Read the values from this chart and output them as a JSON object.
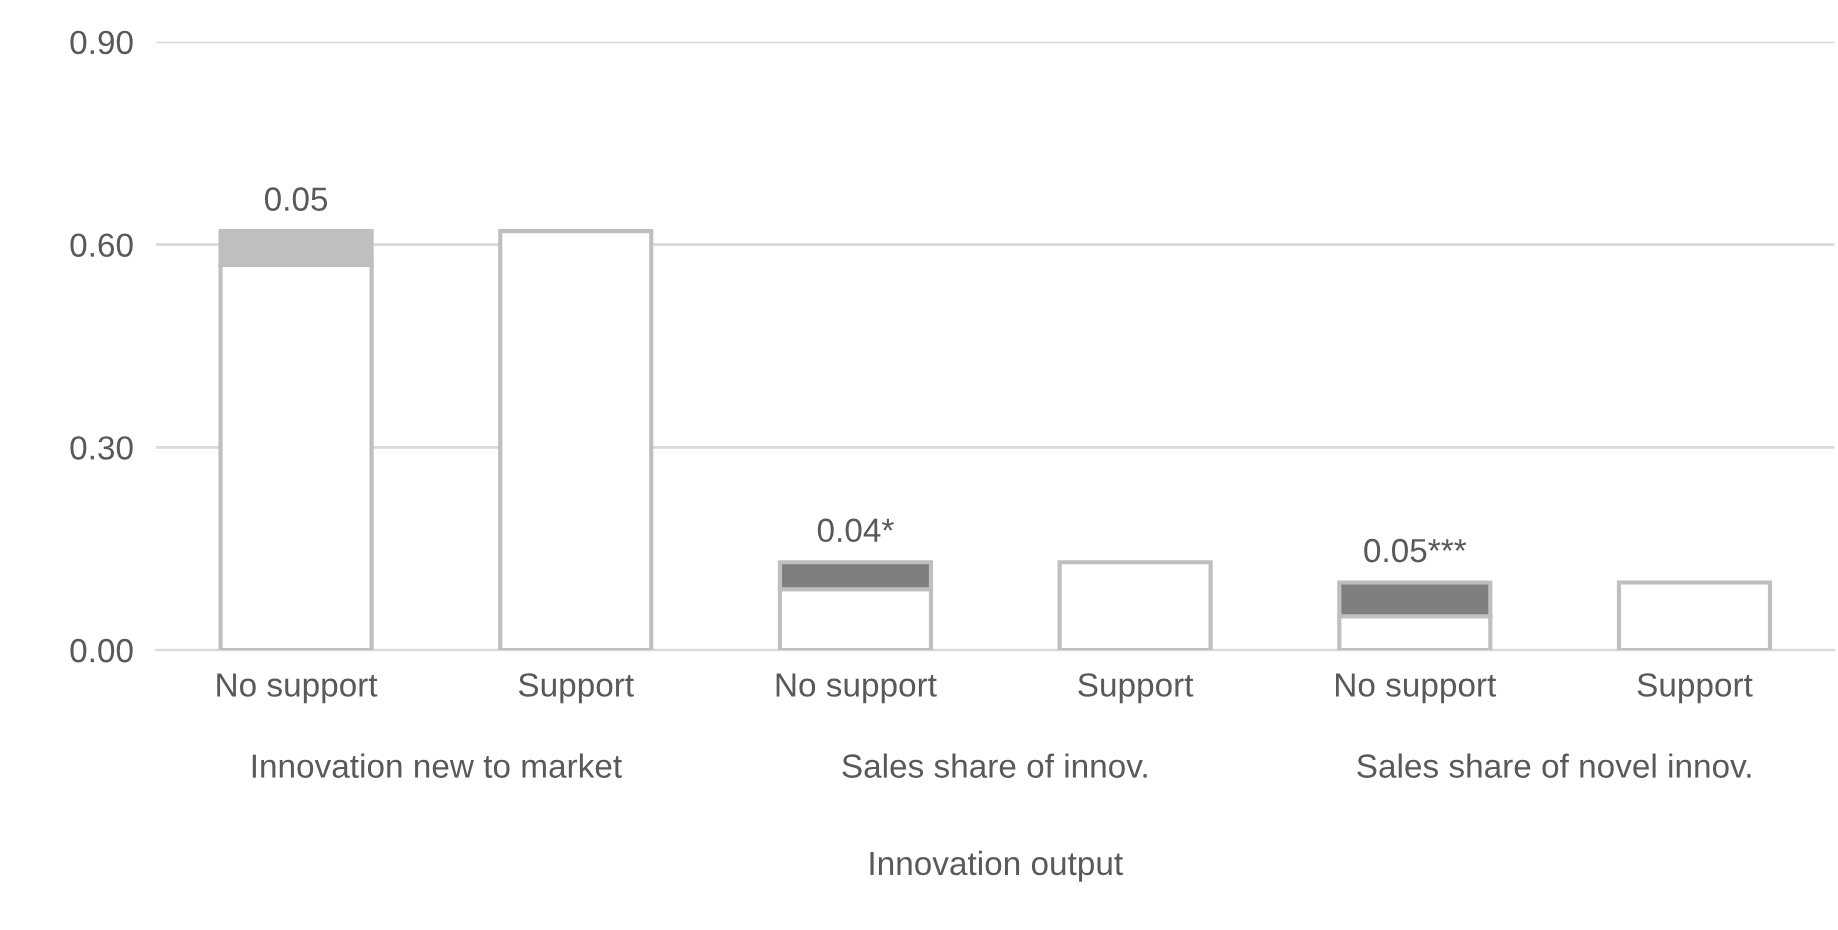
{
  "chart_data": {
    "type": "bar",
    "stacked": true,
    "xlabel": "Innovation output",
    "categories": [
      "No support",
      "Support",
      "No support",
      "Support",
      "No support",
      "Support"
    ],
    "series": [
      {
        "color": "#ffffff",
        "values": [
          0.57,
          0.62,
          0.09,
          0.13,
          0.05,
          0.1
        ]
      },
      {
        "colors": [
          "#bfbfbf",
          null,
          "#7f7f7f",
          null,
          "#7f7f7f",
          null
        ],
        "values": [
          0.05,
          null,
          0.04,
          null,
          0.05,
          null
        ],
        "value_labels": [
          "0.05",
          null,
          "0.04*",
          null,
          "0.05***",
          null
        ]
      }
    ],
    "annotations": [
      "Innovation new to market",
      "Sales share of innov.",
      "Sales share of novel innov."
    ],
    "ylim": [
      0,
      0.9
    ],
    "yticks": [
      {
        "value": 0,
        "label": "0.00"
      },
      {
        "value": 0.3,
        "label": "0.30"
      },
      {
        "value": 0.6,
        "label": "0.60"
      },
      {
        "value": 0.9,
        "label": "0.90"
      }
    ],
    "grid": "y",
    "legend": false
  }
}
